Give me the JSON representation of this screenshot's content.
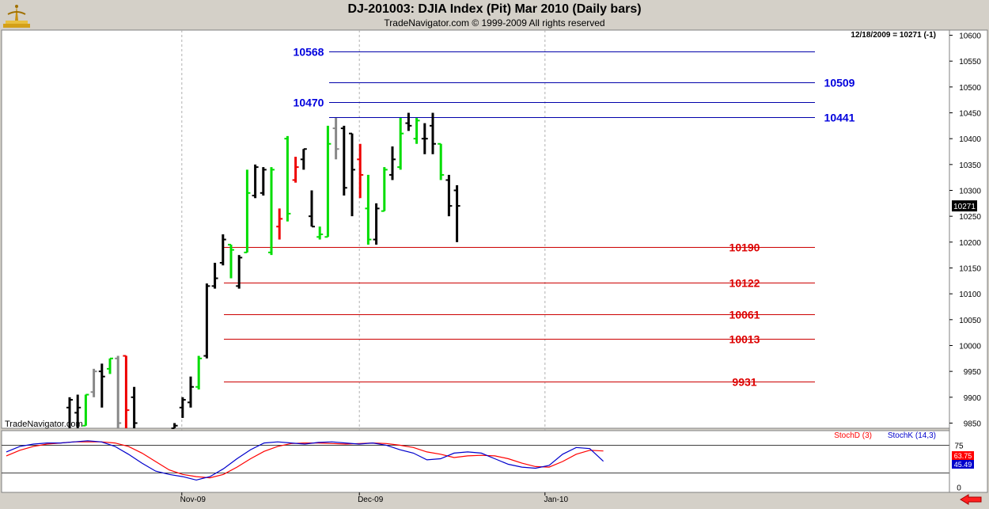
{
  "header": {
    "title": "DJ-201003:  DJIA Index (Pit) Mar 2010  (Daily bars)",
    "subtitle": "TradeNavigator.com © 1999-2009 All rights reserved"
  },
  "main_panel": {
    "last_info": "12/18/2009 = 10271 (-1)",
    "last_price_label": "10271",
    "watermark": "TradeNavigator.com"
  },
  "indicator_panel": {
    "legend": [
      {
        "name": "StochD (3)",
        "color": "#ff0000"
      },
      {
        "name": "StochK (14,3)",
        "color": "#0000cc"
      }
    ],
    "readouts": [
      {
        "text": "63.75",
        "color": "#ff0000"
      },
      {
        "text": "45.49",
        "color": "#0000cc"
      }
    ],
    "axis_labels": [
      {
        "value": 75,
        "text": "75"
      },
      {
        "value": 0,
        "text": "0"
      }
    ]
  },
  "chart_data": [
    {
      "type": "ohlc",
      "title": "DJ-201003:  DJIA Index (Pit) Mar 2010  (Daily bars)",
      "ylim": [
        9840,
        10610
      ],
      "yticks": [
        9850,
        9900,
        9950,
        10000,
        10050,
        10100,
        10150,
        10200,
        10250,
        10300,
        10350,
        10400,
        10450,
        10500,
        10550,
        10600
      ],
      "x_tick_labels": [
        {
          "label": "Nov-09",
          "index": 14
        },
        {
          "label": "Dec-09",
          "index": 36
        },
        {
          "label": "Jan-10",
          "index": 59
        }
      ],
      "x_count": 70,
      "colors": {
        "k": "#000000",
        "g": "#00dd00",
        "r": "#ee0000",
        "y": "#888888"
      },
      "bars": [
        {
          "i": 0,
          "o": 9880,
          "h": 9900,
          "l": 9840,
          "c": 9895,
          "k": "k"
        },
        {
          "i": 1,
          "o": 9870,
          "h": 9905,
          "l": 9840,
          "c": 9880,
          "k": "k"
        },
        {
          "i": 2,
          "o": 9845,
          "h": 9905,
          "l": 9845,
          "c": 9905,
          "k": "g"
        },
        {
          "i": 3,
          "o": 9910,
          "h": 9955,
          "l": 9900,
          "c": 9950,
          "k": "y"
        },
        {
          "i": 4,
          "o": 9950,
          "h": 9965,
          "l": 9880,
          "c": 9940,
          "k": "k"
        },
        {
          "i": 5,
          "o": 9955,
          "h": 9975,
          "l": 9945,
          "c": 9975,
          "k": "g"
        },
        {
          "i": 6,
          "o": 9975,
          "h": 9980,
          "l": 9840,
          "c": 9850,
          "k": "y"
        },
        {
          "i": 7,
          "o": 9980,
          "h": 9980,
          "l": 9840,
          "c": 9875,
          "k": "r"
        },
        {
          "i": 8,
          "o": 9900,
          "h": 9920,
          "l": 9840,
          "c": 9850,
          "k": "k"
        },
        {
          "i": 13,
          "o": 9840,
          "h": 9850,
          "l": 9840,
          "c": 9845,
          "k": "k"
        },
        {
          "i": 14,
          "o": 9880,
          "h": 9900,
          "l": 9860,
          "c": 9895,
          "k": "k"
        },
        {
          "i": 15,
          "o": 9890,
          "h": 9940,
          "l": 9880,
          "c": 9920,
          "k": "k"
        },
        {
          "i": 16,
          "o": 9920,
          "h": 9980,
          "l": 9915,
          "c": 9975,
          "k": "g"
        },
        {
          "i": 17,
          "o": 9980,
          "h": 10120,
          "l": 9975,
          "c": 10115,
          "k": "k"
        },
        {
          "i": 18,
          "o": 10115,
          "h": 10160,
          "l": 10110,
          "c": 10130,
          "k": "k"
        },
        {
          "i": 19,
          "o": 10160,
          "h": 10215,
          "l": 10155,
          "c": 10205,
          "k": "k"
        },
        {
          "i": 20,
          "o": 10195,
          "h": 10195,
          "l": 10130,
          "c": 10185,
          "k": "g"
        },
        {
          "i": 21,
          "o": 10115,
          "h": 10175,
          "l": 10110,
          "c": 10170,
          "k": "k"
        },
        {
          "i": 22,
          "o": 10180,
          "h": 10340,
          "l": 10180,
          "c": 10295,
          "k": "g"
        },
        {
          "i": 23,
          "o": 10290,
          "h": 10350,
          "l": 10285,
          "c": 10345,
          "k": "k"
        },
        {
          "i": 24,
          "o": 10295,
          "h": 10345,
          "l": 10290,
          "c": 10340,
          "k": "k"
        },
        {
          "i": 25,
          "o": 10180,
          "h": 10345,
          "l": 10175,
          "c": 10340,
          "k": "g"
        },
        {
          "i": 26,
          "o": 10230,
          "h": 10265,
          "l": 10205,
          "c": 10245,
          "k": "r"
        },
        {
          "i": 27,
          "o": 10400,
          "h": 10405,
          "l": 10240,
          "c": 10255,
          "k": "g"
        },
        {
          "i": 28,
          "o": 10320,
          "h": 10365,
          "l": 10315,
          "c": 10345,
          "k": "r"
        },
        {
          "i": 29,
          "o": 10360,
          "h": 10380,
          "l": 10340,
          "c": 10380,
          "k": "k"
        },
        {
          "i": 30,
          "o": 10250,
          "h": 10300,
          "l": 10230,
          "c": 10230,
          "k": "k"
        },
        {
          "i": 31,
          "o": 10210,
          "h": 10230,
          "l": 10205,
          "c": 10215,
          "k": "g"
        },
        {
          "i": 32,
          "o": 10210,
          "h": 10425,
          "l": 10210,
          "c": 10390,
          "k": "g"
        },
        {
          "i": 33,
          "o": 10420,
          "h": 10440,
          "l": 10360,
          "c": 10380,
          "k": "y"
        },
        {
          "i": 34,
          "o": 10420,
          "h": 10425,
          "l": 10290,
          "c": 10305,
          "k": "k"
        },
        {
          "i": 35,
          "o": 10410,
          "h": 10410,
          "l": 10250,
          "c": 10340,
          "k": "k"
        },
        {
          "i": 36,
          "o": 10360,
          "h": 10390,
          "l": 10285,
          "c": 10330,
          "k": "r"
        },
        {
          "i": 37,
          "o": 10265,
          "h": 10330,
          "l": 10195,
          "c": 10205,
          "k": "g"
        },
        {
          "i": 38,
          "o": 10205,
          "h": 10275,
          "l": 10195,
          "c": 10265,
          "k": "k"
        },
        {
          "i": 39,
          "o": 10260,
          "h": 10345,
          "l": 10260,
          "c": 10340,
          "k": "g"
        },
        {
          "i": 40,
          "o": 10330,
          "h": 10385,
          "l": 10320,
          "c": 10360,
          "k": "k"
        },
        {
          "i": 41,
          "o": 10345,
          "h": 10440,
          "l": 10340,
          "c": 10410,
          "k": "g"
        },
        {
          "i": 42,
          "o": 10430,
          "h": 10450,
          "l": 10415,
          "c": 10425,
          "k": "k"
        },
        {
          "i": 43,
          "o": 10400,
          "h": 10440,
          "l": 10390,
          "c": 10435,
          "k": "g"
        },
        {
          "i": 44,
          "o": 10400,
          "h": 10430,
          "l": 10370,
          "c": 10400,
          "k": "k"
        },
        {
          "i": 45,
          "o": 10425,
          "h": 10450,
          "l": 10370,
          "c": 10390,
          "k": "k"
        },
        {
          "i": 46,
          "o": 10390,
          "h": 10390,
          "l": 10320,
          "c": 10330,
          "k": "g"
        },
        {
          "i": 47,
          "o": 10320,
          "h": 10330,
          "l": 10250,
          "c": 10270,
          "k": "k"
        },
        {
          "i": 48,
          "o": 10300,
          "h": 10310,
          "l": 10200,
          "c": 10270,
          "k": "k"
        }
      ],
      "lines": [
        {
          "value": 10568,
          "label": "10568",
          "color": "#0000aa",
          "label_side": "left"
        },
        {
          "value": 10509,
          "label": "10509",
          "color": "#0000aa",
          "label_side": "right"
        },
        {
          "value": 10470,
          "label": "10470",
          "color": "#0000aa",
          "label_side": "left"
        },
        {
          "value": 10441,
          "label": "10441",
          "color": "#0000aa",
          "label_side": "right"
        },
        {
          "value": 10190,
          "label": "10190",
          "color": "#cc0000",
          "label_side": "right"
        },
        {
          "value": 10122,
          "label": "10122",
          "color": "#cc0000",
          "label_side": "right"
        },
        {
          "value": 10061,
          "label": "10061",
          "color": "#cc0000",
          "label_side": "right"
        },
        {
          "value": 10013,
          "label": "10013",
          "color": "#cc0000",
          "label_side": "right"
        },
        {
          "value": 9931,
          "label": "9931",
          "color": "#cc0000",
          "label_side": "right"
        }
      ]
    },
    {
      "type": "line",
      "ylim": [
        -10,
        100
      ],
      "series": [
        {
          "name": "StochD (3)",
          "color": "#ff0000",
          "values": [
            [
              0,
              55
            ],
            [
              1,
              65
            ],
            [
              2,
              72
            ],
            [
              3,
              76
            ],
            [
              4,
              78
            ],
            [
              5,
              80
            ],
            [
              6,
              80
            ],
            [
              7,
              80
            ],
            [
              8,
              78
            ],
            [
              9,
              72
            ],
            [
              10,
              60
            ],
            [
              11,
              45
            ],
            [
              12,
              30
            ],
            [
              13,
              22
            ],
            [
              14,
              18
            ],
            [
              15,
              16
            ],
            [
              16,
              22
            ],
            [
              17,
              35
            ],
            [
              18,
              50
            ],
            [
              19,
              63
            ],
            [
              20,
              72
            ],
            [
              21,
              77
            ],
            [
              22,
              78
            ],
            [
              23,
              78
            ],
            [
              24,
              77
            ],
            [
              25,
              76
            ],
            [
              26,
              77
            ],
            [
              27,
              78
            ],
            [
              28,
              77
            ],
            [
              29,
              74
            ],
            [
              30,
              70
            ],
            [
              31,
              62
            ],
            [
              32,
              58
            ],
            [
              33,
              52
            ],
            [
              34,
              55
            ],
            [
              35,
              56
            ],
            [
              36,
              55
            ],
            [
              37,
              50
            ],
            [
              38,
              42
            ],
            [
              39,
              36
            ],
            [
              40,
              35
            ],
            [
              41,
              45
            ],
            [
              42,
              58
            ],
            [
              43,
              65
            ],
            [
              44,
              63.75
            ]
          ]
        },
        {
          "name": "StochK (14,3)",
          "color": "#0000cc",
          "values": [
            [
              0,
              62
            ],
            [
              1,
              72
            ],
            [
              2,
              76
            ],
            [
              3,
              78
            ],
            [
              4,
              78
            ],
            [
              5,
              80
            ],
            [
              6,
              82
            ],
            [
              7,
              80
            ],
            [
              8,
              72
            ],
            [
              9,
              58
            ],
            [
              10,
              42
            ],
            [
              11,
              28
            ],
            [
              12,
              22
            ],
            [
              13,
              18
            ],
            [
              14,
              12
            ],
            [
              15,
              18
            ],
            [
              16,
              32
            ],
            [
              17,
              50
            ],
            [
              18,
              66
            ],
            [
              19,
              78
            ],
            [
              20,
              80
            ],
            [
              21,
              78
            ],
            [
              22,
              76
            ],
            [
              23,
              79
            ],
            [
              24,
              80
            ],
            [
              25,
              78
            ],
            [
              26,
              76
            ],
            [
              27,
              78
            ],
            [
              28,
              74
            ],
            [
              29,
              66
            ],
            [
              30,
              60
            ],
            [
              31,
              48
            ],
            [
              32,
              50
            ],
            [
              33,
              60
            ],
            [
              34,
              62
            ],
            [
              35,
              60
            ],
            [
              36,
              50
            ],
            [
              37,
              40
            ],
            [
              38,
              35
            ],
            [
              39,
              33
            ],
            [
              40,
              38
            ],
            [
              41,
              58
            ],
            [
              42,
              70
            ],
            [
              43,
              68
            ],
            [
              44,
              45.49
            ]
          ]
        }
      ]
    }
  ]
}
